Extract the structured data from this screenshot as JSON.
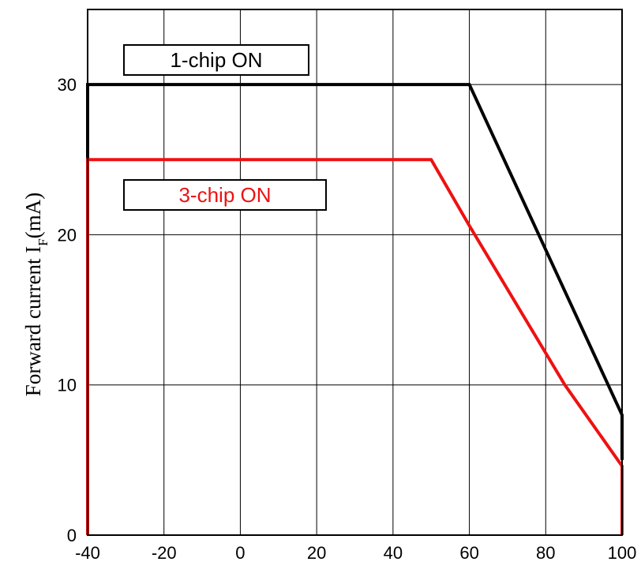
{
  "chart_data": {
    "type": "line",
    "title": "",
    "xlabel": "",
    "ylabel": "Forward current I",
    "ylabel_subscript": "F",
    "ylabel_unit": "(mA)",
    "xlim": [
      -40,
      100
    ],
    "ylim": [
      0,
      35
    ],
    "x_ticks": [
      -40,
      -20,
      0,
      20,
      40,
      60,
      80,
      100
    ],
    "y_ticks": [
      0,
      10,
      20,
      30
    ],
    "grid": true,
    "series": [
      {
        "name": "1-chip ON",
        "color": "#000000",
        "x": [
          -40,
          -40,
          60,
          100,
          100
        ],
        "y": [
          25,
          30,
          30,
          8,
          5
        ]
      },
      {
        "name": "3-chip ON",
        "color": "#ee1111",
        "x": [
          -40,
          -40,
          50,
          60,
          85,
          100,
          100
        ],
        "y": [
          0,
          25,
          25,
          20.6,
          10,
          4.6,
          0
        ]
      }
    ]
  }
}
